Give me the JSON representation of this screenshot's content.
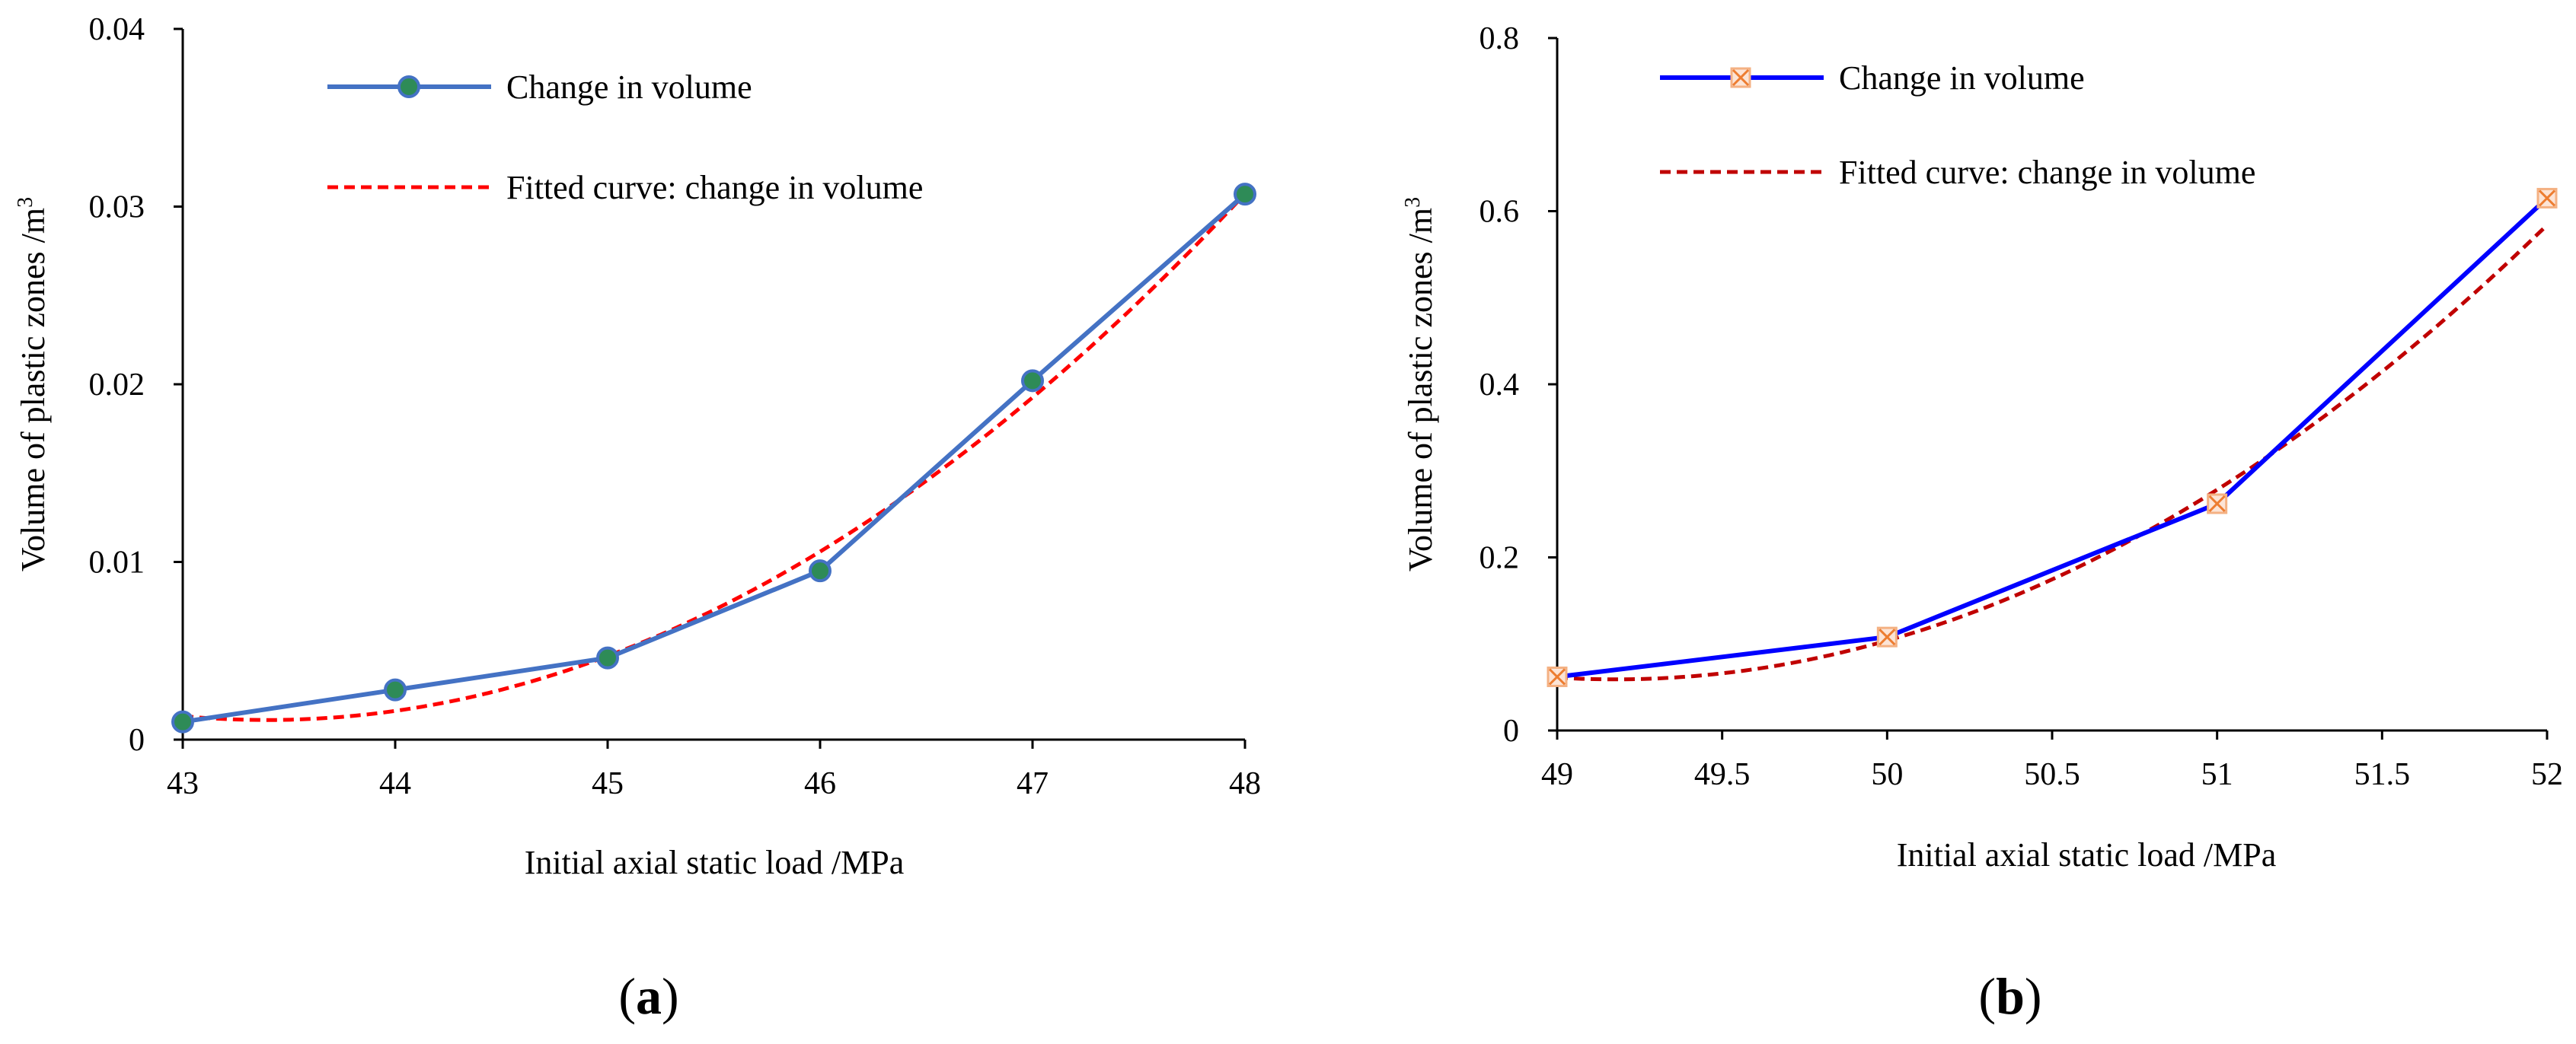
{
  "chart_data": [
    {
      "type": "line",
      "caption": "a",
      "xlabel": "Initial axial static load /MPa",
      "ylabel": "Volume of plastic zones /m",
      "ylabel_sup": "3",
      "xlim": [
        43,
        48
      ],
      "ylim": [
        0,
        0.04
      ],
      "xticks": [
        43,
        44,
        45,
        46,
        47,
        48
      ],
      "xtick_labels": [
        "43",
        "44",
        "45",
        "46",
        "47",
        "48"
      ],
      "yticks": [
        0,
        0.01,
        0.02,
        0.03,
        0.04
      ],
      "ytick_labels": [
        "0",
        "0.01",
        "0.02",
        "0.03",
        "0.04"
      ],
      "series": [
        {
          "name": "Change in volume",
          "color": "#4472C4",
          "marker_color": "#2E8B57",
          "x": [
            43,
            44,
            45,
            46,
            47,
            48
          ],
          "values": [
            0.001,
            0.0028,
            0.0046,
            0.0095,
            0.0202,
            0.0307
          ]
        },
        {
          "name": "Fitted curve: change in volume",
          "color": "#FF0000",
          "dashed": true,
          "fit": "quadratic",
          "x": [
            43,
            44,
            45,
            46,
            47,
            48
          ],
          "values": [
            0.0013,
            0.0017,
            0.0046,
            0.0106,
            0.0193,
            0.0307
          ]
        }
      ]
    },
    {
      "type": "line",
      "caption": "b",
      "xlabel": "Initial axial static load /MPa",
      "ylabel": "Volume of plastic zones /m",
      "ylabel_sup": "3",
      "xlim": [
        49,
        52
      ],
      "ylim": [
        0,
        0.8
      ],
      "xticks": [
        49,
        49.5,
        50,
        50.5,
        51,
        51.5,
        52
      ],
      "xtick_labels": [
        "49",
        "49.5",
        "50",
        "50.5",
        "51",
        "51.5",
        "52"
      ],
      "yticks": [
        0,
        0.2,
        0.4,
        0.6,
        0.8
      ],
      "ytick_labels": [
        "0",
        "0.2",
        "0.4",
        "0.6",
        "0.8"
      ],
      "series": [
        {
          "name": "Change in volume",
          "color": "#0000FF",
          "marker_color": "#F4B183",
          "x": [
            49,
            50,
            51,
            52
          ],
          "values": [
            0.062,
            0.108,
            0.262,
            0.615
          ]
        },
        {
          "name": "Fitted curve: change in volume",
          "color": "#C00000",
          "dashed": true,
          "fit": "quadratic",
          "x": [
            49,
            50,
            51,
            52
          ],
          "values": [
            0.055,
            0.122,
            0.26,
            0.59
          ]
        }
      ]
    }
  ]
}
